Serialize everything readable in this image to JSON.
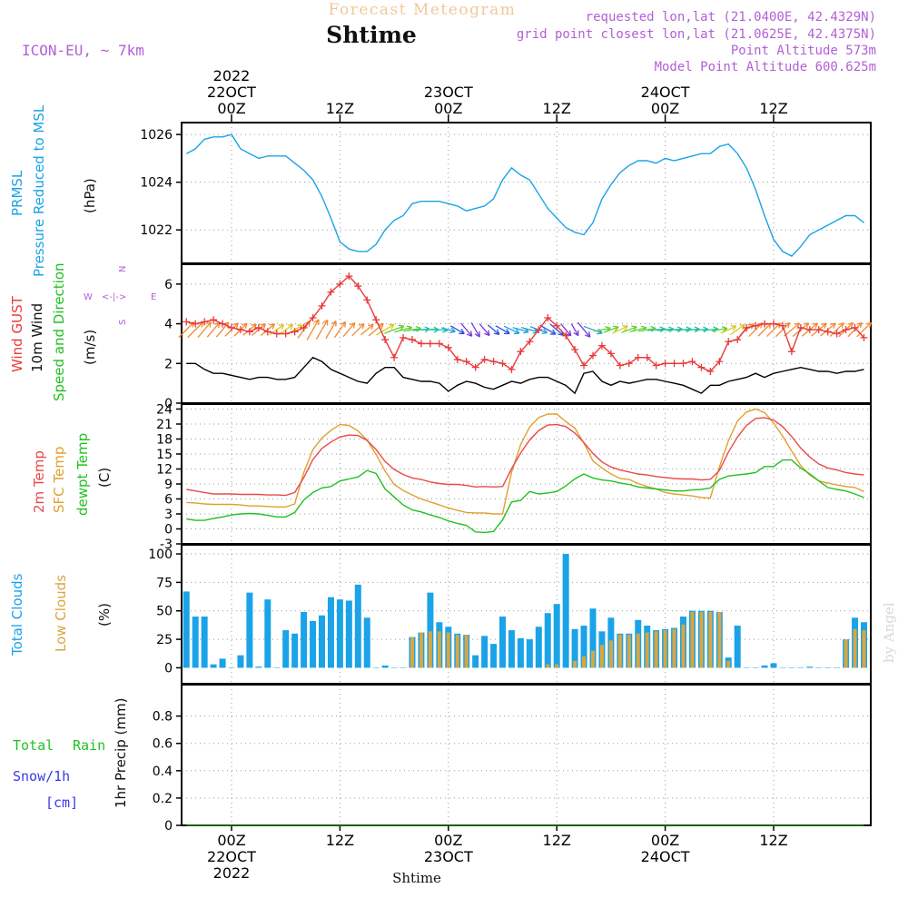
{
  "header": {
    "title": "Forecast Meteogram",
    "location": "Shtime",
    "model": "ICON-EU, ~ 7km",
    "requested": "requested lon,lat (21.0400E, 42.4329N)",
    "gridpoint": "grid point closest lon,lat (21.0625E, 42.4375N)",
    "point_altitude": "Point Altitude 573m",
    "model_altitude": "Model Point Altitude 600.625m",
    "watermark": "by Angel",
    "footer_location": "Shtime"
  },
  "colors": {
    "pressure": "#1aa3e8",
    "gust": "#e83a3a",
    "wind": "#000000",
    "t2m": "#e84a4a",
    "sfc": "#e0a030",
    "dew": "#22c022",
    "total_clouds": "#1aa3e8",
    "low_clouds": "#d9a640",
    "rain": "#22c022",
    "snow": "#3a3ae8",
    "meta": "#b35fd6",
    "title": "#f2c79a"
  },
  "time_axis": {
    "n_hours": 76,
    "top_ticks": [
      {
        "hour": 0,
        "lines": [
          "2022",
          "22OCT",
          "00Z"
        ]
      },
      {
        "hour": 12,
        "lines": [
          "12Z"
        ]
      },
      {
        "hour": 24,
        "lines": [
          "23OCT",
          "00Z"
        ]
      },
      {
        "hour": 36,
        "lines": [
          "12Z"
        ]
      },
      {
        "hour": 48,
        "lines": [
          "24OCT",
          "00Z"
        ]
      },
      {
        "hour": 60,
        "lines": [
          "12Z"
        ]
      }
    ],
    "bottom_ticks": [
      {
        "hour": 0,
        "lines": [
          "00Z",
          "22OCT",
          "2022"
        ]
      },
      {
        "hour": 12,
        "lines": [
          "12Z"
        ]
      },
      {
        "hour": 24,
        "lines": [
          "00Z",
          "23OCT"
        ]
      },
      {
        "hour": 36,
        "lines": [
          "12Z"
        ]
      },
      {
        "hour": 48,
        "lines": [
          "00Z",
          "24OCT"
        ]
      },
      {
        "hour": 60,
        "lines": [
          "12Z"
        ]
      }
    ]
  },
  "labels": {
    "pressure": [
      "PRMSL",
      "Pressure Reduced to MSL",
      "(hPa)"
    ],
    "wind": [
      "Wind GUST",
      "10m Wind",
      "Speed and Direction",
      "(m/s)"
    ],
    "compass": {
      "n": "N",
      "s": "S",
      "w": "W",
      "e": "E",
      "ew": "<-|->"
    },
    "temp": [
      "2m Temp",
      "SFC Temp",
      "dewpt Temp",
      "(C)"
    ],
    "clouds": [
      "Total Clouds",
      "Low Clouds",
      "(%)"
    ],
    "precip": [
      "Total",
      "Rain",
      "Snow/1h",
      "[cm]",
      "1hr Precip (mm)"
    ]
  },
  "chart_data": [
    {
      "type": "line",
      "title": "PRMSL Pressure Reduced to MSL",
      "ylabel": "hPa",
      "ylim": [
        1020.6,
        1026.5
      ],
      "yticks": [
        1022,
        1024,
        1026
      ],
      "series": [
        {
          "name": "PRMSL",
          "values": [
            1025.2,
            1025.4,
            1025.8,
            1025.9,
            1025.9,
            1026.0,
            1025.4,
            1025.2,
            1025.0,
            1025.1,
            1025.1,
            1025.1,
            1024.8,
            1024.5,
            1024.1,
            1023.4,
            1022.5,
            1021.5,
            1021.2,
            1021.1,
            1021.1,
            1021.4,
            1022.0,
            1022.4,
            1022.6,
            1023.1,
            1023.2,
            1023.2,
            1023.2,
            1023.1,
            1023.0,
            1022.8,
            1022.9,
            1023.0,
            1023.3,
            1024.1,
            1024.6,
            1024.3,
            1024.1,
            1023.5,
            1022.9,
            1022.5,
            1022.1,
            1021.9,
            1021.8,
            1022.3,
            1023.3,
            1023.9,
            1024.4,
            1024.7,
            1024.9,
            1024.9,
            1024.8,
            1025.0,
            1024.9,
            1025.0,
            1025.1,
            1025.2,
            1025.2,
            1025.5,
            1025.6,
            1025.2,
            1024.6,
            1023.7,
            1022.6,
            1021.6,
            1021.1,
            1020.9,
            1021.3,
            1021.8,
            1022.0,
            1022.2,
            1022.4,
            1022.6,
            1022.6,
            1022.3
          ]
        }
      ]
    },
    {
      "type": "line",
      "title": "Wind GUST / 10m Wind",
      "ylabel": "m/s",
      "ylim": [
        0,
        7
      ],
      "yticks": [
        0,
        2,
        4,
        6
      ],
      "series": [
        {
          "name": "Wind GUST",
          "values": [
            4.1,
            4.0,
            4.1,
            4.2,
            4.0,
            3.8,
            3.7,
            3.6,
            3.8,
            3.6,
            3.5,
            3.5,
            3.6,
            3.8,
            4.3,
            4.9,
            5.6,
            6.0,
            6.4,
            5.9,
            5.2,
            4.2,
            3.2,
            2.3,
            3.3,
            3.2,
            3.0,
            3.0,
            3.0,
            2.8,
            2.2,
            2.1,
            1.8,
            2.2,
            2.1,
            2.0,
            1.7,
            2.6,
            3.1,
            3.7,
            4.3,
            3.9,
            3.4,
            2.7,
            1.9,
            2.4,
            2.9,
            2.5,
            1.9,
            2.0,
            2.3,
            2.3,
            1.9,
            2.0,
            2.0,
            2.0,
            2.1,
            1.8,
            1.6,
            2.1,
            3.1,
            3.2,
            3.8,
            3.9,
            4.0,
            4.0,
            3.9,
            2.6,
            3.8,
            3.7,
            3.7,
            3.6,
            3.5,
            3.7,
            3.8,
            3.3
          ]
        },
        {
          "name": "10m Wind",
          "values": [
            2.0,
            2.0,
            1.7,
            1.5,
            1.5,
            1.4,
            1.3,
            1.2,
            1.3,
            1.3,
            1.2,
            1.2,
            1.3,
            1.8,
            2.3,
            2.1,
            1.7,
            1.5,
            1.3,
            1.1,
            1.0,
            1.5,
            1.8,
            1.8,
            1.3,
            1.2,
            1.1,
            1.1,
            1.0,
            0.6,
            0.9,
            1.1,
            1.0,
            0.8,
            0.7,
            0.9,
            1.1,
            1.0,
            1.2,
            1.3,
            1.3,
            1.1,
            0.9,
            0.5,
            1.5,
            1.6,
            1.1,
            0.9,
            1.1,
            1.0,
            1.1,
            1.2,
            1.2,
            1.1,
            1.0,
            0.9,
            0.7,
            0.5,
            0.9,
            0.9,
            1.1,
            1.2,
            1.3,
            1.5,
            1.3,
            1.5,
            1.6,
            1.7,
            1.8,
            1.7,
            1.6,
            1.6,
            1.5,
            1.6,
            1.6,
            1.7
          ]
        }
      ],
      "wind_dir_deg": [
        225,
        225,
        220,
        220,
        220,
        225,
        225,
        230,
        230,
        230,
        235,
        235,
        240,
        215,
        210,
        210,
        210,
        215,
        220,
        225,
        230,
        230,
        240,
        250,
        255,
        260,
        265,
        270,
        275,
        285,
        300,
        320,
        330,
        320,
        310,
        300,
        295,
        285,
        285,
        290,
        300,
        310,
        320,
        330,
        320,
        290,
        260,
        250,
        245,
        250,
        255,
        260,
        265,
        265,
        265,
        265,
        265,
        265,
        265,
        260,
        245,
        235,
        230,
        225,
        225,
        225,
        225,
        230,
        230,
        230,
        230,
        230,
        225,
        225,
        225,
        225
      ]
    },
    {
      "type": "line",
      "title": "Temperature",
      "ylabel": "C",
      "ylim": [
        -3,
        25
      ],
      "yticks": [
        -3,
        0,
        3,
        6,
        9,
        12,
        15,
        18,
        21,
        24
      ],
      "series": [
        {
          "name": "2m Temp",
          "values": [
            7.9,
            7.6,
            7.3,
            7.0,
            7.0,
            7.0,
            6.9,
            6.9,
            6.9,
            6.8,
            6.8,
            6.7,
            7.3,
            10.3,
            13.9,
            16.1,
            17.4,
            18.4,
            18.8,
            18.7,
            17.7,
            15.9,
            13.5,
            11.9,
            10.9,
            10.2,
            9.9,
            9.4,
            9.1,
            8.9,
            8.9,
            8.7,
            8.4,
            8.5,
            8.4,
            8.5,
            12.1,
            15.2,
            17.8,
            19.7,
            20.8,
            20.9,
            20.5,
            19.2,
            17.3,
            15.1,
            13.4,
            12.4,
            11.8,
            11.4,
            11.0,
            10.8,
            10.5,
            10.3,
            10.1,
            10.0,
            10.0,
            9.8,
            9.9,
            11.7,
            15.4,
            18.4,
            20.7,
            22.1,
            22.3,
            21.8,
            20.5,
            18.5,
            16.2,
            14.4,
            13.0,
            12.2,
            11.8,
            11.3,
            11.0,
            10.8
          ]
        },
        {
          "name": "SFC Temp",
          "values": [
            5.3,
            5.2,
            5.0,
            4.9,
            4.9,
            4.9,
            4.8,
            4.6,
            4.6,
            4.5,
            4.4,
            4.4,
            5.0,
            11.3,
            15.9,
            18.2,
            19.7,
            20.9,
            20.7,
            19.6,
            17.8,
            14.9,
            11.6,
            8.9,
            7.7,
            6.8,
            6.0,
            5.4,
            4.8,
            4.2,
            3.7,
            3.3,
            3.2,
            3.2,
            3.0,
            3.0,
            11.4,
            16.9,
            20.4,
            22.3,
            23.0,
            23.0,
            21.5,
            20.2,
            17.2,
            13.6,
            12.2,
            11.0,
            10.1,
            9.9,
            9.1,
            8.5,
            8.0,
            7.3,
            7.0,
            6.8,
            6.6,
            6.3,
            6.2,
            12.4,
            17.7,
            21.6,
            23.4,
            24.0,
            23.3,
            21.2,
            18.6,
            15.6,
            12.7,
            10.8,
            9.6,
            9.2,
            8.8,
            8.5,
            8.3,
            7.5
          ]
        },
        {
          "name": "dewpt Temp",
          "values": [
            2.0,
            1.7,
            1.7,
            2.1,
            2.4,
            2.8,
            3.0,
            3.1,
            3.0,
            2.7,
            2.4,
            2.4,
            3.3,
            5.8,
            7.3,
            8.2,
            8.5,
            9.6,
            10.0,
            10.4,
            11.7,
            11.1,
            8.0,
            6.4,
            4.8,
            3.8,
            3.4,
            2.8,
            2.3,
            1.6,
            1.1,
            0.7,
            -0.6,
            -0.7,
            -0.5,
            1.8,
            5.4,
            5.7,
            7.5,
            7.0,
            7.2,
            7.5,
            8.6,
            10.0,
            11.0,
            10.2,
            9.8,
            9.6,
            9.2,
            8.9,
            8.4,
            8.2,
            8.0,
            7.8,
            7.6,
            7.6,
            7.8,
            7.9,
            8.2,
            9.9,
            10.6,
            10.8,
            11.0,
            11.3,
            12.5,
            12.5,
            13.8,
            13.8,
            12.2,
            11.0,
            9.6,
            8.3,
            7.9,
            7.6,
            7.0,
            6.3
          ]
        }
      ]
    },
    {
      "type": "bar",
      "title": "Clouds",
      "ylabel": "%",
      "ylim": [
        0,
        100
      ],
      "yticks": [
        0,
        25,
        50,
        75,
        100
      ],
      "series": [
        {
          "name": "Total Clouds",
          "values": [
            67,
            45,
            45,
            3,
            8,
            0,
            11,
            66,
            1,
            60,
            0,
            33,
            30,
            49,
            41,
            46,
            62,
            60,
            59,
            73,
            44,
            0,
            2,
            0,
            0,
            27,
            31,
            66,
            40,
            36,
            30,
            29,
            11,
            28,
            21,
            45,
            33,
            26,
            25,
            36,
            48,
            56,
            100,
            34,
            37,
            52,
            32,
            44,
            30,
            30,
            42,
            37,
            33,
            34,
            35,
            45,
            50,
            50,
            50,
            49,
            9,
            37,
            0,
            0,
            2,
            4,
            0,
            0,
            0,
            1,
            0,
            0,
            0,
            25,
            44,
            40
          ]
        },
        {
          "name": "Low Clouds",
          "values": [
            0,
            0,
            0,
            0,
            0,
            0,
            0,
            0,
            0,
            0,
            0,
            0,
            0,
            0,
            0,
            0,
            0,
            0,
            0,
            0,
            0,
            0,
            0,
            0,
            0,
            27,
            31,
            32,
            32,
            31,
            29,
            29,
            0,
            0,
            0,
            0,
            0,
            0,
            0,
            0,
            3,
            3,
            0,
            6,
            10,
            15,
            20,
            24,
            29,
            29,
            30,
            31,
            32,
            33,
            34,
            38,
            49,
            49,
            49,
            49,
            6,
            0,
            0,
            0,
            0,
            0,
            0,
            0,
            0,
            0,
            0,
            0,
            0,
            25,
            34,
            33
          ]
        }
      ]
    },
    {
      "type": "bar",
      "title": "1hr Precip",
      "ylabel": "mm",
      "ylim": [
        0,
        1
      ],
      "yticks": [
        0,
        0.2,
        0.4,
        0.6,
        0.8
      ],
      "series": [
        {
          "name": "Total Rain",
          "values": [
            0,
            0,
            0,
            0,
            0,
            0,
            0,
            0,
            0,
            0,
            0,
            0,
            0,
            0,
            0,
            0,
            0,
            0,
            0,
            0,
            0,
            0,
            0,
            0,
            0,
            0,
            0,
            0,
            0,
            0,
            0,
            0,
            0,
            0,
            0,
            0,
            0,
            0,
            0,
            0,
            0,
            0,
            0,
            0,
            0,
            0,
            0,
            0,
            0,
            0,
            0,
            0,
            0,
            0,
            0,
            0,
            0,
            0,
            0,
            0,
            0,
            0,
            0,
            0,
            0,
            0,
            0,
            0,
            0,
            0,
            0,
            0,
            0,
            0,
            0,
            0
          ]
        },
        {
          "name": "Snow/1h",
          "values": [
            0,
            0,
            0,
            0,
            0,
            0,
            0,
            0,
            0,
            0,
            0,
            0,
            0,
            0,
            0,
            0,
            0,
            0,
            0,
            0,
            0,
            0,
            0,
            0,
            0,
            0,
            0,
            0,
            0,
            0,
            0,
            0,
            0,
            0,
            0,
            0,
            0,
            0,
            0,
            0,
            0,
            0,
            0,
            0,
            0,
            0,
            0,
            0,
            0,
            0,
            0,
            0,
            0,
            0,
            0,
            0,
            0,
            0,
            0,
            0,
            0,
            0,
            0,
            0,
            0,
            0,
            0,
            0,
            0,
            0,
            0,
            0,
            0,
            0,
            0,
            0
          ]
        }
      ]
    }
  ]
}
